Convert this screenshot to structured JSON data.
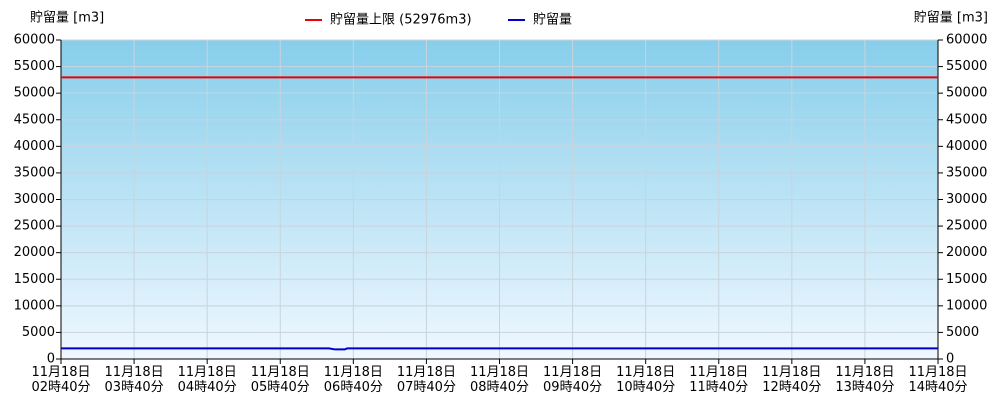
{
  "chart_data": {
    "type": "line",
    "y_label": "貯留量 [m3]",
    "y2_label": "貯留量 [m3]",
    "xlim": [
      "11月18日 02時40分",
      "11月18日 14時40分"
    ],
    "xticks": [
      "11月18日 02時40分",
      "11月18日 03時40分",
      "11月18日 04時40分",
      "11月18日 05時40分",
      "11月18日 06時40分",
      "11月18日 07時40分",
      "11月18日 08時40分",
      "11月18日 09時40分",
      "11月18日 10時40分",
      "11月18日 11時40分",
      "11月18日 12時40分",
      "11月18日 13時40分",
      "11月18日 14時40分"
    ],
    "ylim": [
      0,
      60000
    ],
    "yticks": [
      0,
      5000,
      10000,
      15000,
      20000,
      25000,
      30000,
      35000,
      40000,
      45000,
      50000,
      55000,
      60000
    ],
    "y2lim": [
      0,
      60000
    ],
    "y2ticks": [
      0,
      5000,
      10000,
      15000,
      20000,
      25000,
      30000,
      35000,
      40000,
      45000,
      50000,
      55000,
      60000
    ],
    "grid": true,
    "series": [
      {
        "name": "貯留量上限 (52976m3)",
        "color": "#ee0000",
        "x": [
          "11月18日 02時40分",
          "11月18日 14時40分"
        ],
        "values": [
          52976,
          52976
        ]
      },
      {
        "name": "貯留量",
        "color": "#0000cc",
        "x": [
          "11月18日 02時40分",
          "11月18日 06時20分",
          "11月18日 06時25分",
          "11月18日 06時33分",
          "11月18日 06時35分",
          "11月18日 14時40分"
        ],
        "values": [
          2000,
          2000,
          1800,
          1800,
          2000,
          2000
        ]
      }
    ]
  }
}
